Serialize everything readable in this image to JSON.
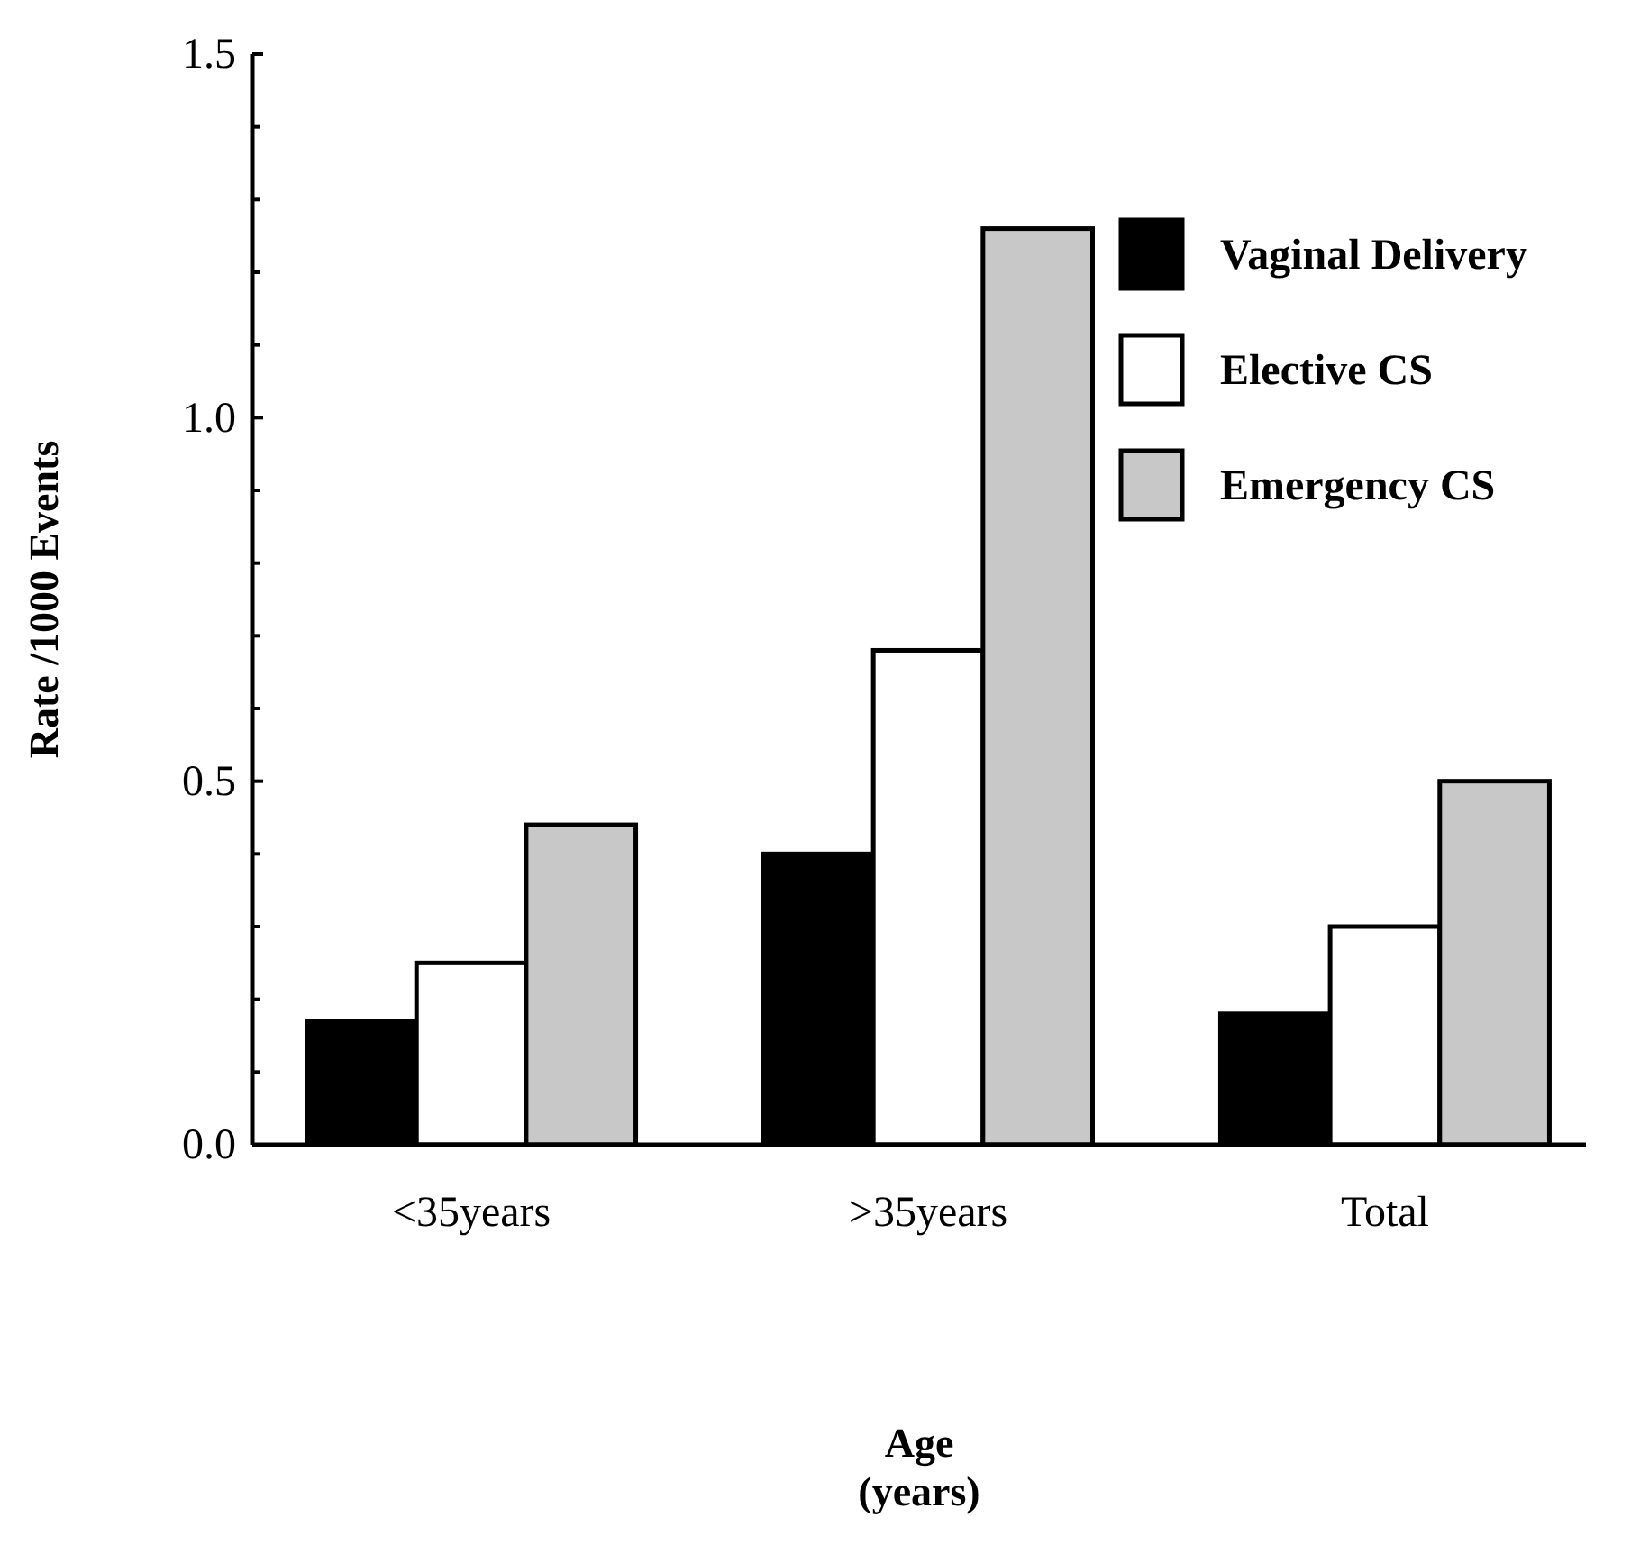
{
  "chart_data": {
    "type": "bar",
    "xlabel": "Age\n(years)",
    "ylabel": "Rate /1000 Events",
    "categories": [
      "<35years",
      ">35years",
      "Total"
    ],
    "series": [
      {
        "name": "Vaginal Delivery",
        "color": "#000000",
        "values": [
          0.17,
          0.4,
          0.18
        ]
      },
      {
        "name": "Elective CS",
        "color": "#ffffff",
        "values": [
          0.25,
          0.68,
          0.3
        ]
      },
      {
        "name": "Emergency CS",
        "color": "#c8c8c8",
        "values": [
          0.44,
          1.26,
          0.5
        ]
      }
    ],
    "ylim": [
      0,
      1.5
    ],
    "yticks": [
      {
        "value": 0,
        "label": "0.0"
      },
      {
        "value": 0.1,
        "label": null
      },
      {
        "value": 0.2,
        "label": null
      },
      {
        "value": 0.3,
        "label": null
      },
      {
        "value": 0.4,
        "label": null
      },
      {
        "value": 0.5,
        "label": "0.5"
      },
      {
        "value": 0.6,
        "label": null
      },
      {
        "value": 0.7,
        "label": null
      },
      {
        "value": 0.8,
        "label": null
      },
      {
        "value": 0.9,
        "label": null
      },
      {
        "value": 1,
        "label": "1.0"
      },
      {
        "value": 1.1,
        "label": null
      },
      {
        "value": 1.2,
        "label": null
      },
      {
        "value": 1.3,
        "label": null
      },
      {
        "value": 1.4,
        "label": null
      },
      {
        "value": 1.5,
        "label": "1.5"
      }
    ],
    "legend": "top right",
    "grid": false
  }
}
